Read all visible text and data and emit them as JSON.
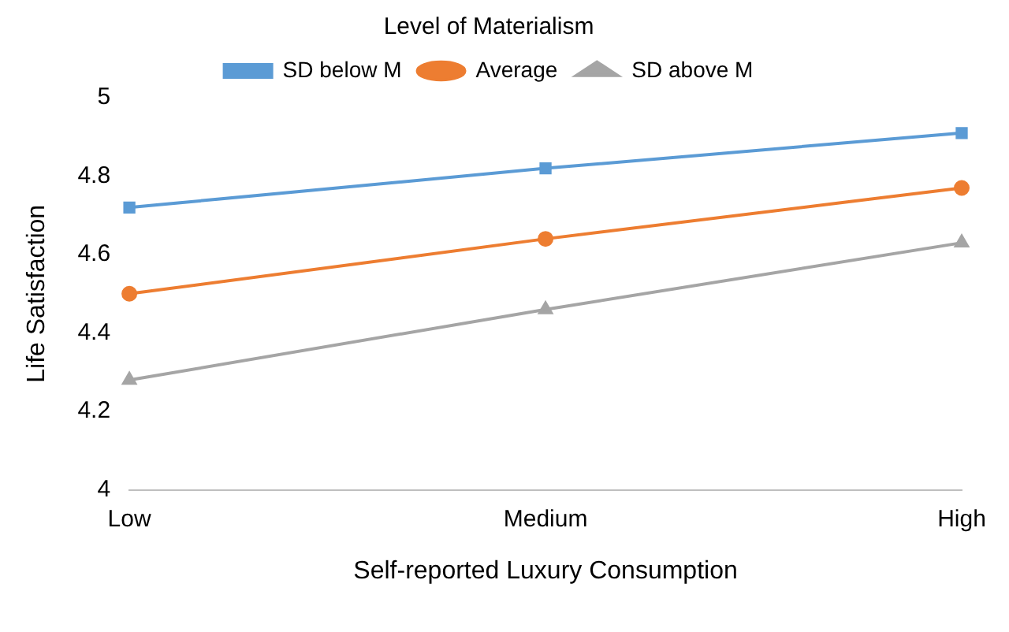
{
  "chart_data": {
    "type": "line",
    "legend_title": "Level of Materialism",
    "xlabel": "Self-reported Luxury Consumption",
    "ylabel": "Life Satisfaction",
    "categories": [
      "Low",
      "Medium",
      "High"
    ],
    "series": [
      {
        "name": "SD below M",
        "color": "#5b9bd5",
        "marker": "square",
        "values": [
          4.72,
          4.82,
          4.91
        ]
      },
      {
        "name": "Average",
        "color": "#ed7d31",
        "marker": "circle",
        "values": [
          4.5,
          4.64,
          4.77
        ]
      },
      {
        "name": "SD above M",
        "color": "#a5a5a5",
        "marker": "triangle",
        "values": [
          4.28,
          4.46,
          4.63
        ]
      }
    ],
    "ylim": [
      4,
      5
    ],
    "yticks": [
      4,
      4.2,
      4.4,
      4.6,
      4.8,
      5
    ],
    "grid": false,
    "legend": "top",
    "line_style": "solid"
  }
}
